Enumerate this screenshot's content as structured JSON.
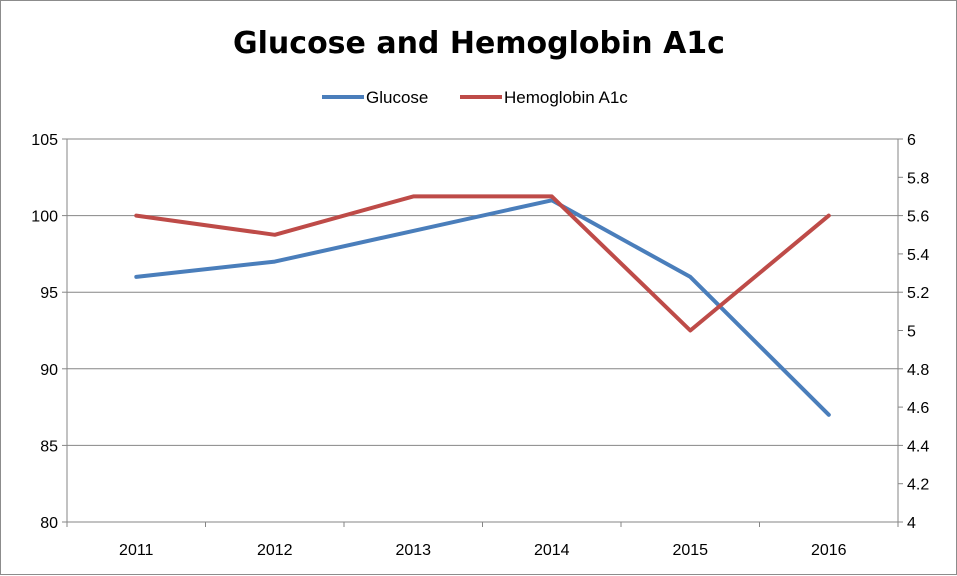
{
  "chart_data": {
    "type": "line",
    "title": "Glucose and Hemoglobin A1c",
    "categories": [
      "2011",
      "2012",
      "2013",
      "2014",
      "2015",
      "2016"
    ],
    "series": [
      {
        "name": "Glucose",
        "axis": "left",
        "color": "#4a7ebb",
        "values": [
          96,
          97,
          99,
          101,
          96,
          87
        ]
      },
      {
        "name": "Hemoglobin A1c",
        "axis": "right",
        "color": "#be4b48",
        "values": [
          5.6,
          5.5,
          5.7,
          5.7,
          5.0,
          5.6
        ]
      }
    ],
    "y_left": {
      "ylim": [
        80,
        105
      ],
      "ticks": [
        "80",
        "85",
        "90",
        "95",
        "100",
        "105"
      ]
    },
    "y_right": {
      "ylim": [
        4,
        6
      ],
      "ticks": [
        "4",
        "4.2",
        "4.4",
        "4.6",
        "4.8",
        "5",
        "5.2",
        "5.4",
        "5.6",
        "5.8",
        "6"
      ]
    },
    "grid": true,
    "legend_position": "top"
  }
}
